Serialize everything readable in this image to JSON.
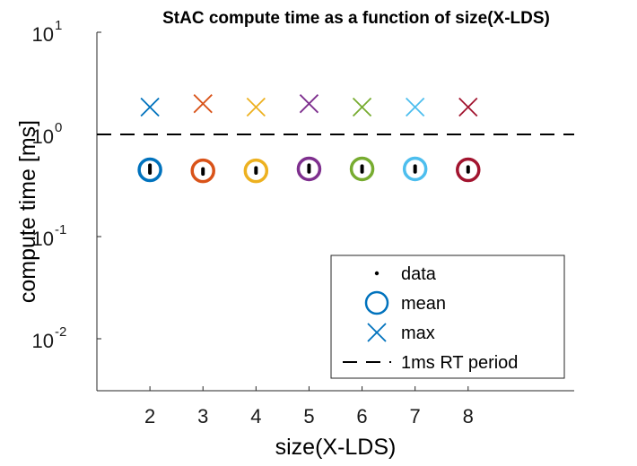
{
  "chart_data": {
    "type": "scatter",
    "title": "StAC compute time as a function of size(X-LDS)",
    "xlabel": "size(X-LDS)",
    "ylabel": "compute time [ms]",
    "y_scale": "log",
    "xlim": [
      1,
      10
    ],
    "ylim": [
      0.003,
      10
    ],
    "x_ticks": [
      "2",
      "3",
      "4",
      "5",
      "6",
      "7",
      "8"
    ],
    "y_ticks": [
      {
        "base": "10",
        "exp": "-2",
        "value": 0.01
      },
      {
        "base": "10",
        "exp": "-1",
        "value": 0.1
      },
      {
        "base": "10",
        "exp": "0",
        "value": 1
      },
      {
        "base": "10",
        "exp": "1",
        "value": 10
      }
    ],
    "grid": false,
    "legend_position": "bottom-right",
    "reference_line": {
      "y": 1,
      "style": "dashed",
      "color": "#000000"
    },
    "groups": [
      {
        "x": 2,
        "mean": 0.45,
        "max": 1.85,
        "data_min": 0.42,
        "data_max": 0.5,
        "color": "#0072BD"
      },
      {
        "x": 3,
        "mean": 0.44,
        "max": 2.0,
        "data_min": 0.41,
        "data_max": 0.46,
        "color": "#D95319"
      },
      {
        "x": 4,
        "mean": 0.44,
        "max": 1.85,
        "data_min": 0.42,
        "data_max": 0.47,
        "color": "#EDB120"
      },
      {
        "x": 5,
        "mean": 0.46,
        "max": 2.0,
        "data_min": 0.43,
        "data_max": 0.5,
        "color": "#7E2F8E"
      },
      {
        "x": 6,
        "mean": 0.46,
        "max": 1.85,
        "data_min": 0.43,
        "data_max": 0.49,
        "color": "#77AC30"
      },
      {
        "x": 7,
        "mean": 0.46,
        "max": 1.85,
        "data_min": 0.43,
        "data_max": 0.49,
        "color": "#4DBEEE"
      },
      {
        "x": 8,
        "mean": 0.45,
        "max": 1.85,
        "data_min": 0.43,
        "data_max": 0.48,
        "color": "#A2142F"
      }
    ],
    "legend": [
      {
        "label": "data",
        "marker": "dot",
        "color": "#000000"
      },
      {
        "label": "mean",
        "marker": "circle",
        "color": "#0072BD"
      },
      {
        "label": "max",
        "marker": "x",
        "color": "#0072BD"
      },
      {
        "label": "1ms RT period",
        "marker": "dashed-line",
        "color": "#000000"
      }
    ]
  }
}
